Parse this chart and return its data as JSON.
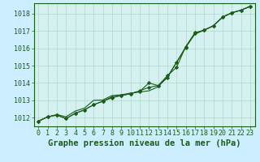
{
  "title": "Graphe pression niveau de la mer (hPa)",
  "background_color": "#cceeff",
  "plot_bg_color": "#d4f0ef",
  "grid_color": "#b0d8cc",
  "line_color": "#1a5c1a",
  "marker_color": "#1a5c1a",
  "xlim": [
    -0.5,
    23.5
  ],
  "ylim": [
    1011.5,
    1018.6
  ],
  "yticks": [
    1012,
    1013,
    1014,
    1015,
    1016,
    1017,
    1018
  ],
  "xticks": [
    0,
    1,
    2,
    3,
    4,
    5,
    6,
    7,
    8,
    9,
    10,
    11,
    12,
    13,
    14,
    15,
    16,
    17,
    18,
    19,
    20,
    21,
    22,
    23
  ],
  "series1": [
    1011.8,
    1012.05,
    1012.15,
    1011.95,
    1012.25,
    1012.45,
    1012.75,
    1012.95,
    1013.15,
    1013.28,
    1013.38,
    1013.55,
    1013.75,
    1013.85,
    1014.3,
    1015.2,
    1016.05,
    1016.85,
    1017.05,
    1017.3,
    1017.8,
    1018.05,
    1018.2,
    1018.42
  ],
  "series2": [
    1011.8,
    1012.05,
    1012.15,
    1011.95,
    1012.25,
    1012.45,
    1012.75,
    1012.95,
    1013.2,
    1013.28,
    1013.38,
    1013.52,
    1014.0,
    1013.85,
    1014.42,
    1014.9,
    1016.1,
    1016.9,
    1017.05,
    1017.3,
    1017.8,
    1018.05,
    1018.2,
    1018.42
  ],
  "series3": [
    1011.8,
    1012.05,
    1012.18,
    1012.05,
    1012.38,
    1012.55,
    1013.0,
    1013.02,
    1013.28,
    1013.32,
    1013.42,
    1013.48,
    1013.55,
    1013.78,
    1014.35,
    1015.18,
    1016.08,
    1016.82,
    1017.05,
    1017.3,
    1017.8,
    1018.05,
    1018.2,
    1018.42
  ],
  "xlabel_fontsize": 7.5,
  "tick_fontsize": 6.0
}
